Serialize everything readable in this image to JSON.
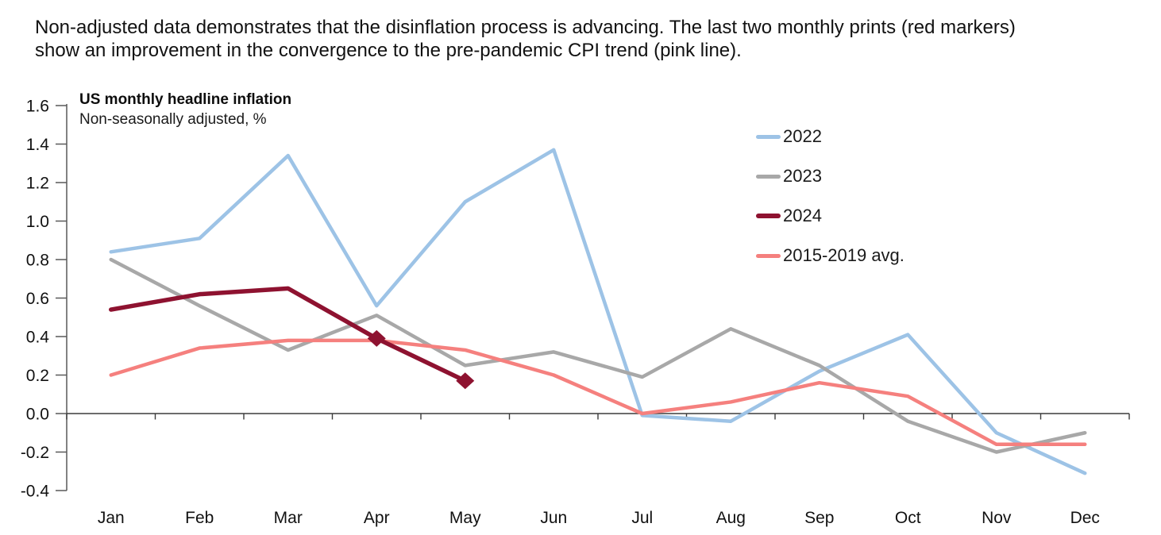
{
  "header": {
    "line1": "Non-adjusted data demonstrates that the disinflation process is advancing. The last two monthly prints (red markers)",
    "line2": "show an improvement in the convergence to the pre-pandemic CPI trend (pink line)."
  },
  "chart_data": {
    "type": "line",
    "title": "US monthly headline inflation",
    "subtitle": "Non-seasonally adjusted, %",
    "categories": [
      "Jan",
      "Feb",
      "Mar",
      "Apr",
      "May",
      "Jun",
      "Jul",
      "Aug",
      "Sep",
      "Oct",
      "Nov",
      "Dec"
    ],
    "series": [
      {
        "name": "2022",
        "color": "#9DC3E6",
        "values": [
          0.84,
          0.91,
          1.34,
          0.56,
          1.1,
          1.37,
          -0.01,
          -0.04,
          0.22,
          0.41,
          -0.1,
          -0.31
        ]
      },
      {
        "name": "2023",
        "color": "#A8A8A8",
        "values": [
          0.8,
          0.56,
          0.33,
          0.51,
          0.25,
          0.32,
          0.19,
          0.44,
          0.25,
          -0.04,
          -0.2,
          -0.1
        ]
      },
      {
        "name": "2024",
        "color": "#8E1230",
        "values": [
          0.54,
          0.62,
          0.65,
          0.39,
          0.17
        ],
        "markers": {
          "shape": "diamond",
          "indices": [
            3,
            4
          ]
        }
      },
      {
        "name": "2015-2019 avg.",
        "color": "#F5807E",
        "values": [
          0.2,
          0.34,
          0.38,
          0.38,
          0.33,
          0.2,
          0.0,
          0.06,
          0.16,
          0.09,
          -0.16,
          -0.16
        ]
      }
    ],
    "ylim": [
      -0.4,
      1.6
    ],
    "y_tick_step": 0.2,
    "y_ticks": [
      "1.6",
      "1.4",
      "1.2",
      "1.0",
      "0.8",
      "0.6",
      "0.4",
      "0.2",
      "0.0",
      "-0.2",
      "-0.4"
    ],
    "grid": false,
    "zero_line": true,
    "x_labels_position": "bottom",
    "legend_position": "inside-top-right",
    "draw_order": [
      "2022",
      "2023",
      "2015-2019 avg.",
      "2024"
    ]
  }
}
